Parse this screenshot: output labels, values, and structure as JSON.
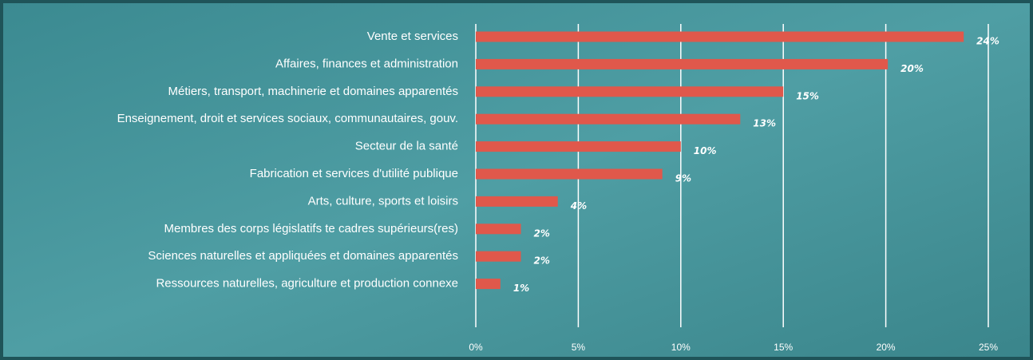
{
  "chart_data": {
    "type": "bar",
    "orientation": "horizontal",
    "categories": [
      "Vente et services",
      "Affaires, finances et administration",
      "Métiers, transport, machinerie et domaines apparentés",
      "Enseignement, droit et services sociaux, communautaires, gouv.",
      "Secteur de la santé",
      "Fabrication et services d'utilité publique",
      "Arts, culture, sports et loisirs",
      "Membres des corps législatifs te cadres supérieurs(res)",
      "Sciences naturelles et appliquées et domaines apparentés",
      "Ressources naturelles, agriculture et production connexe"
    ],
    "values": [
      23.8,
      20.1,
      15,
      12.9,
      10,
      9.1,
      4,
      2.2,
      2.2,
      1.2
    ],
    "value_labels": [
      "24%",
      "20%",
      "15%",
      "13%",
      "10%",
      "9%",
      "4%",
      "2%",
      "2%",
      "1%"
    ],
    "color": "#e0584b",
    "xlim": [
      0,
      25
    ],
    "xticks": [
      {
        "value": 0,
        "label": "0%"
      },
      {
        "value": 5,
        "label": "5%"
      },
      {
        "value": 10,
        "label": "10%"
      },
      {
        "value": 15,
        "label": "15%"
      },
      {
        "value": 20,
        "label": "20%"
      },
      {
        "value": 25,
        "label": "25%"
      }
    ],
    "grid": true
  }
}
